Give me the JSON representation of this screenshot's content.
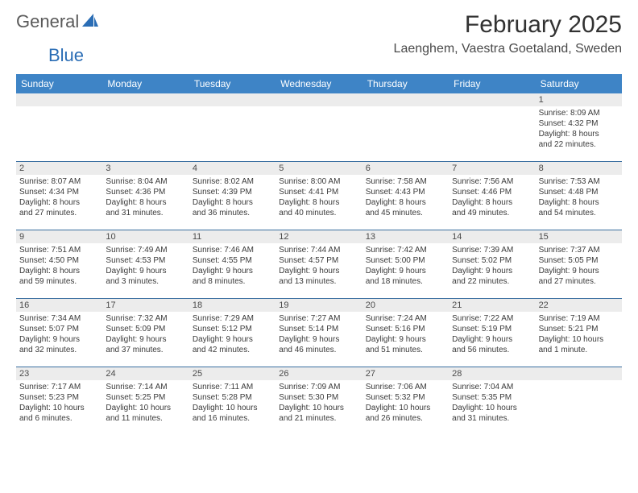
{
  "logo": {
    "text1": "General",
    "text2": "Blue"
  },
  "title": "February 2025",
  "location": "Laenghem, Vaestra Goetaland, Sweden",
  "colors": {
    "header_bg": "#3e84c6",
    "header_fg": "#ffffff",
    "daybar_bg": "#ececec",
    "divider": "#3a6fa0",
    "text": "#323232",
    "logo_gray": "#5a5a5a",
    "logo_blue": "#2a6db5"
  },
  "weekdays": [
    "Sunday",
    "Monday",
    "Tuesday",
    "Wednesday",
    "Thursday",
    "Friday",
    "Saturday"
  ],
  "weeks": [
    [
      {
        "n": "",
        "sr": "",
        "ss": "",
        "d1": "",
        "d2": ""
      },
      {
        "n": "",
        "sr": "",
        "ss": "",
        "d1": "",
        "d2": ""
      },
      {
        "n": "",
        "sr": "",
        "ss": "",
        "d1": "",
        "d2": ""
      },
      {
        "n": "",
        "sr": "",
        "ss": "",
        "d1": "",
        "d2": ""
      },
      {
        "n": "",
        "sr": "",
        "ss": "",
        "d1": "",
        "d2": ""
      },
      {
        "n": "",
        "sr": "",
        "ss": "",
        "d1": "",
        "d2": ""
      },
      {
        "n": "1",
        "sr": "Sunrise: 8:09 AM",
        "ss": "Sunset: 4:32 PM",
        "d1": "Daylight: 8 hours",
        "d2": "and 22 minutes."
      }
    ],
    [
      {
        "n": "2",
        "sr": "Sunrise: 8:07 AM",
        "ss": "Sunset: 4:34 PM",
        "d1": "Daylight: 8 hours",
        "d2": "and 27 minutes."
      },
      {
        "n": "3",
        "sr": "Sunrise: 8:04 AM",
        "ss": "Sunset: 4:36 PM",
        "d1": "Daylight: 8 hours",
        "d2": "and 31 minutes."
      },
      {
        "n": "4",
        "sr": "Sunrise: 8:02 AM",
        "ss": "Sunset: 4:39 PM",
        "d1": "Daylight: 8 hours",
        "d2": "and 36 minutes."
      },
      {
        "n": "5",
        "sr": "Sunrise: 8:00 AM",
        "ss": "Sunset: 4:41 PM",
        "d1": "Daylight: 8 hours",
        "d2": "and 40 minutes."
      },
      {
        "n": "6",
        "sr": "Sunrise: 7:58 AM",
        "ss": "Sunset: 4:43 PM",
        "d1": "Daylight: 8 hours",
        "d2": "and 45 minutes."
      },
      {
        "n": "7",
        "sr": "Sunrise: 7:56 AM",
        "ss": "Sunset: 4:46 PM",
        "d1": "Daylight: 8 hours",
        "d2": "and 49 minutes."
      },
      {
        "n": "8",
        "sr": "Sunrise: 7:53 AM",
        "ss": "Sunset: 4:48 PM",
        "d1": "Daylight: 8 hours",
        "d2": "and 54 minutes."
      }
    ],
    [
      {
        "n": "9",
        "sr": "Sunrise: 7:51 AM",
        "ss": "Sunset: 4:50 PM",
        "d1": "Daylight: 8 hours",
        "d2": "and 59 minutes."
      },
      {
        "n": "10",
        "sr": "Sunrise: 7:49 AM",
        "ss": "Sunset: 4:53 PM",
        "d1": "Daylight: 9 hours",
        "d2": "and 3 minutes."
      },
      {
        "n": "11",
        "sr": "Sunrise: 7:46 AM",
        "ss": "Sunset: 4:55 PM",
        "d1": "Daylight: 9 hours",
        "d2": "and 8 minutes."
      },
      {
        "n": "12",
        "sr": "Sunrise: 7:44 AM",
        "ss": "Sunset: 4:57 PM",
        "d1": "Daylight: 9 hours",
        "d2": "and 13 minutes."
      },
      {
        "n": "13",
        "sr": "Sunrise: 7:42 AM",
        "ss": "Sunset: 5:00 PM",
        "d1": "Daylight: 9 hours",
        "d2": "and 18 minutes."
      },
      {
        "n": "14",
        "sr": "Sunrise: 7:39 AM",
        "ss": "Sunset: 5:02 PM",
        "d1": "Daylight: 9 hours",
        "d2": "and 22 minutes."
      },
      {
        "n": "15",
        "sr": "Sunrise: 7:37 AM",
        "ss": "Sunset: 5:05 PM",
        "d1": "Daylight: 9 hours",
        "d2": "and 27 minutes."
      }
    ],
    [
      {
        "n": "16",
        "sr": "Sunrise: 7:34 AM",
        "ss": "Sunset: 5:07 PM",
        "d1": "Daylight: 9 hours",
        "d2": "and 32 minutes."
      },
      {
        "n": "17",
        "sr": "Sunrise: 7:32 AM",
        "ss": "Sunset: 5:09 PM",
        "d1": "Daylight: 9 hours",
        "d2": "and 37 minutes."
      },
      {
        "n": "18",
        "sr": "Sunrise: 7:29 AM",
        "ss": "Sunset: 5:12 PM",
        "d1": "Daylight: 9 hours",
        "d2": "and 42 minutes."
      },
      {
        "n": "19",
        "sr": "Sunrise: 7:27 AM",
        "ss": "Sunset: 5:14 PM",
        "d1": "Daylight: 9 hours",
        "d2": "and 46 minutes."
      },
      {
        "n": "20",
        "sr": "Sunrise: 7:24 AM",
        "ss": "Sunset: 5:16 PM",
        "d1": "Daylight: 9 hours",
        "d2": "and 51 minutes."
      },
      {
        "n": "21",
        "sr": "Sunrise: 7:22 AM",
        "ss": "Sunset: 5:19 PM",
        "d1": "Daylight: 9 hours",
        "d2": "and 56 minutes."
      },
      {
        "n": "22",
        "sr": "Sunrise: 7:19 AM",
        "ss": "Sunset: 5:21 PM",
        "d1": "Daylight: 10 hours",
        "d2": "and 1 minute."
      }
    ],
    [
      {
        "n": "23",
        "sr": "Sunrise: 7:17 AM",
        "ss": "Sunset: 5:23 PM",
        "d1": "Daylight: 10 hours",
        "d2": "and 6 minutes."
      },
      {
        "n": "24",
        "sr": "Sunrise: 7:14 AM",
        "ss": "Sunset: 5:25 PM",
        "d1": "Daylight: 10 hours",
        "d2": "and 11 minutes."
      },
      {
        "n": "25",
        "sr": "Sunrise: 7:11 AM",
        "ss": "Sunset: 5:28 PM",
        "d1": "Daylight: 10 hours",
        "d2": "and 16 minutes."
      },
      {
        "n": "26",
        "sr": "Sunrise: 7:09 AM",
        "ss": "Sunset: 5:30 PM",
        "d1": "Daylight: 10 hours",
        "d2": "and 21 minutes."
      },
      {
        "n": "27",
        "sr": "Sunrise: 7:06 AM",
        "ss": "Sunset: 5:32 PM",
        "d1": "Daylight: 10 hours",
        "d2": "and 26 minutes."
      },
      {
        "n": "28",
        "sr": "Sunrise: 7:04 AM",
        "ss": "Sunset: 5:35 PM",
        "d1": "Daylight: 10 hours",
        "d2": "and 31 minutes."
      },
      {
        "n": "",
        "sr": "",
        "ss": "",
        "d1": "",
        "d2": ""
      }
    ]
  ]
}
